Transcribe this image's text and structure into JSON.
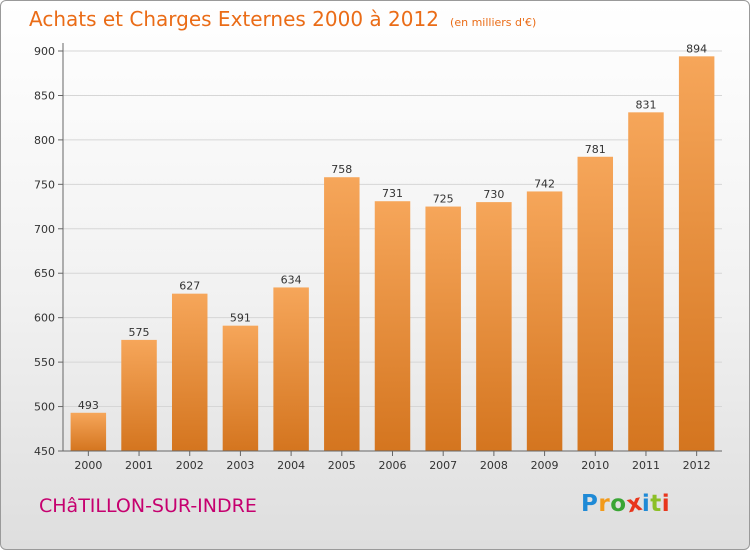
{
  "header": {
    "title": "Achats et Charges Externes 2000 à 2012",
    "unit": "(en milliers d'€)"
  },
  "footer": {
    "commune": "CHâTILLON-SUR-INDRE",
    "logo_letters": [
      {
        "ch": "P",
        "color": "#1f8ad6"
      },
      {
        "ch": "r",
        "color": "#f29a1a"
      },
      {
        "ch": "o",
        "color": "#3aa535"
      },
      {
        "ch": "x",
        "color": "#e8361c"
      },
      {
        "ch": "i",
        "color": "#1f8ad6"
      },
      {
        "ch": "t",
        "color": "#8cbf26"
      },
      {
        "ch": "i",
        "color": "#e8361c"
      }
    ]
  },
  "chart_data": {
    "type": "bar",
    "categories": [
      "2000",
      "2001",
      "2002",
      "2003",
      "2004",
      "2005",
      "2006",
      "2007",
      "2008",
      "2009",
      "2010",
      "2011",
      "2012"
    ],
    "values": [
      493,
      575,
      627,
      591,
      634,
      758,
      731,
      725,
      730,
      742,
      781,
      831,
      894
    ],
    "ylim": [
      450,
      900
    ],
    "yticks": [
      450,
      500,
      550,
      600,
      650,
      700,
      750,
      800,
      850,
      900
    ],
    "grid": true,
    "bar_color_top": "#f6a65a",
    "bar_color_bottom": "#d4751f"
  }
}
